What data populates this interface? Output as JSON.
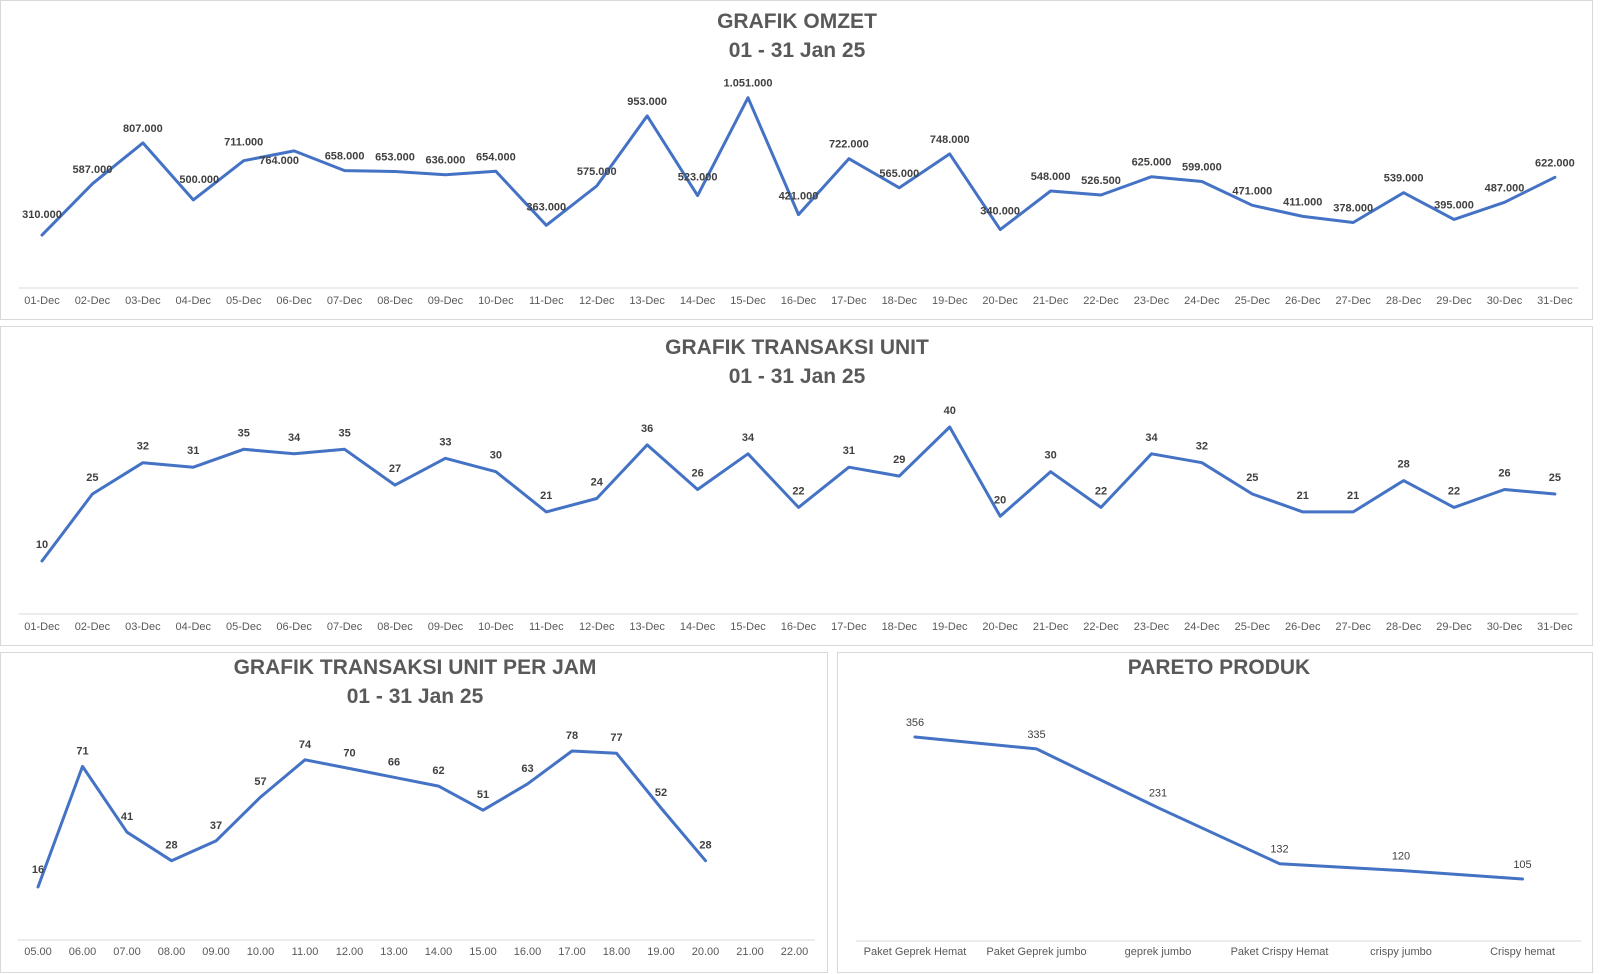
{
  "colors": {
    "series": "#4472c4",
    "text": "#595959",
    "axis": "#d9d9d9"
  },
  "chart_data": [
    {
      "id": "omzet",
      "type": "line",
      "title": "GRAFIK OMZET",
      "subtitle": "01 - 31 Jan 25",
      "categories": [
        "01-Dec",
        "02-Dec",
        "03-Dec",
        "04-Dec",
        "05-Dec",
        "06-Dec",
        "07-Dec",
        "08-Dec",
        "09-Dec",
        "10-Dec",
        "11-Dec",
        "12-Dec",
        "13-Dec",
        "14-Dec",
        "15-Dec",
        "16-Dec",
        "17-Dec",
        "18-Dec",
        "19-Dec",
        "20-Dec",
        "21-Dec",
        "22-Dec",
        "23-Dec",
        "24-Dec",
        "25-Dec",
        "26-Dec",
        "27-Dec",
        "28-Dec",
        "29-Dec",
        "30-Dec",
        "31-Dec"
      ],
      "values": [
        310000,
        587000,
        807000,
        500000,
        711000,
        764000,
        658000,
        653000,
        636000,
        654000,
        363000,
        575000,
        953000,
        523000,
        1051000,
        421000,
        722000,
        565000,
        748000,
        340000,
        548000,
        526500,
        625000,
        599000,
        471000,
        411000,
        378000,
        539000,
        395000,
        487000,
        622000
      ],
      "labels": [
        "310.000",
        "587.000",
        "807.000",
        "500.000",
        "711.000",
        "764.000",
        "658.000",
        "653.000",
        "636.000",
        "654.000",
        "363.000",
        "575.000",
        "953.000",
        "523.000",
        "1.051.000",
        "421.000",
        "722.000",
        "565.000",
        "748.000",
        "340.000",
        "548.000",
        "526.500",
        "625.000",
        "599.000",
        "471.000",
        "411.000",
        "378.000",
        "539.000",
        "395.000",
        "487.000",
        "622.000"
      ],
      "grid": false,
      "legend": "none"
    },
    {
      "id": "unit",
      "type": "line",
      "title": "GRAFIK TRANSAKSI UNIT",
      "subtitle": "01 - 31 Jan 25",
      "categories": [
        "01-Dec",
        "02-Dec",
        "03-Dec",
        "04-Dec",
        "05-Dec",
        "06-Dec",
        "07-Dec",
        "08-Dec",
        "09-Dec",
        "10-Dec",
        "11-Dec",
        "12-Dec",
        "13-Dec",
        "14-Dec",
        "15-Dec",
        "16-Dec",
        "17-Dec",
        "18-Dec",
        "19-Dec",
        "20-Dec",
        "21-Dec",
        "22-Dec",
        "23-Dec",
        "24-Dec",
        "25-Dec",
        "26-Dec",
        "27-Dec",
        "28-Dec",
        "29-Dec",
        "30-Dec",
        "31-Dec"
      ],
      "values": [
        10,
        25,
        32,
        31,
        35,
        34,
        35,
        27,
        33,
        30,
        21,
        24,
        36,
        26,
        34,
        22,
        31,
        29,
        40,
        20,
        30,
        22,
        34,
        32,
        25,
        21,
        21,
        28,
        22,
        26,
        25
      ],
      "labels": [
        "10",
        "25",
        "32",
        "31",
        "35",
        "34",
        "35",
        "27",
        "33",
        "30",
        "21",
        "24",
        "36",
        "26",
        "34",
        "22",
        "31",
        "29",
        "40",
        "20",
        "30",
        "22",
        "34",
        "32",
        "25",
        "21",
        "21",
        "28",
        "22",
        "26",
        "25"
      ],
      "grid": false,
      "legend": "none"
    },
    {
      "id": "jam",
      "type": "line",
      "title": "GRAFIK TRANSAKSI UNIT PER JAM",
      "subtitle": "01 - 31 Jan 25",
      "categories": [
        "05.00",
        "06.00",
        "07.00",
        "08.00",
        "09.00",
        "10.00",
        "11.00",
        "12.00",
        "13.00",
        "14.00",
        "15.00",
        "16.00",
        "17.00",
        "18.00",
        "19.00",
        "20.00",
        "21.00",
        "22.00"
      ],
      "values": [
        16,
        71,
        41,
        28,
        37,
        57,
        74,
        70,
        66,
        62,
        51,
        63,
        78,
        77,
        52,
        28,
        null,
        null
      ],
      "labels": [
        "16",
        "71",
        "41",
        "28",
        "37",
        "57",
        "74",
        "70",
        "66",
        "62",
        "51",
        "63",
        "78",
        "77",
        "52",
        "28",
        "",
        ""
      ],
      "grid": false,
      "legend": "none"
    },
    {
      "id": "pareto",
      "type": "line",
      "title": "PARETO PRODUK",
      "subtitle": "",
      "categories": [
        "Paket Geprek Hemat",
        "Paket Geprek jumbo",
        "geprek jumbo",
        "Paket Crispy Hemat",
        "crispy jumbo",
        "Crispy hemat"
      ],
      "values": [
        356,
        335,
        231,
        132,
        120,
        105
      ],
      "labels": [
        "356",
        "335",
        "231",
        "132",
        "120",
        "105"
      ],
      "grid": false,
      "legend": "none"
    }
  ]
}
